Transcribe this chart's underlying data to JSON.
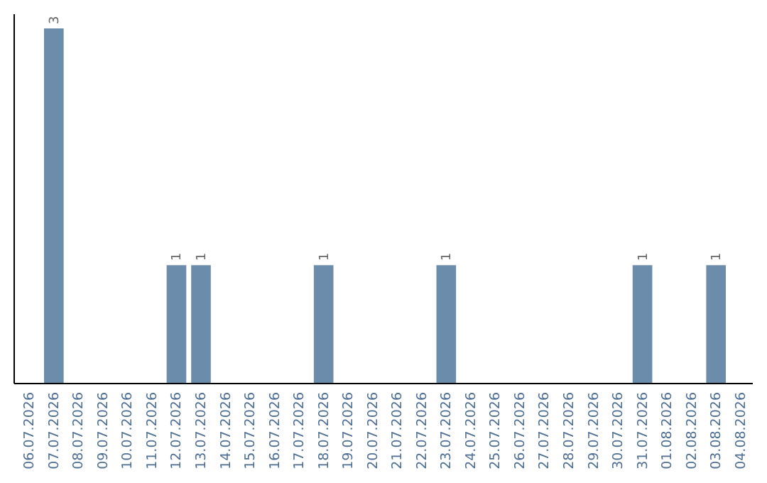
{
  "chart_data": {
    "type": "bar",
    "categories": [
      "06.07.2026",
      "07.07.2026",
      "08.07.2026",
      "09.07.2026",
      "10.07.2026",
      "11.07.2026",
      "12.07.2026",
      "13.07.2026",
      "14.07.2026",
      "15.07.2026",
      "16.07.2026",
      "17.07.2026",
      "18.07.2026",
      "19.07.2026",
      "20.07.2026",
      "21.07.2026",
      "22.07.2026",
      "23.07.2026",
      "24.07.2026",
      "25.07.2026",
      "26.07.2026",
      "27.07.2026",
      "28.07.2026",
      "29.07.2026",
      "30.07.2026",
      "31.07.2026",
      "01.08.2026",
      "02.08.2026",
      "03.08.2026",
      "04.08.2026"
    ],
    "values": [
      0,
      3,
      0,
      0,
      0,
      0,
      1,
      1,
      0,
      0,
      0,
      0,
      1,
      0,
      0,
      0,
      0,
      1,
      0,
      0,
      0,
      0,
      0,
      0,
      0,
      1,
      0,
      0,
      1,
      0
    ],
    "value_labels": [
      null,
      "3",
      null,
      null,
      null,
      null,
      "1",
      "1",
      null,
      null,
      null,
      null,
      "1",
      null,
      null,
      null,
      null,
      "1",
      null,
      null,
      null,
      null,
      null,
      null,
      null,
      "1",
      null,
      null,
      "1",
      null
    ],
    "color": "#6b8cab"
  }
}
